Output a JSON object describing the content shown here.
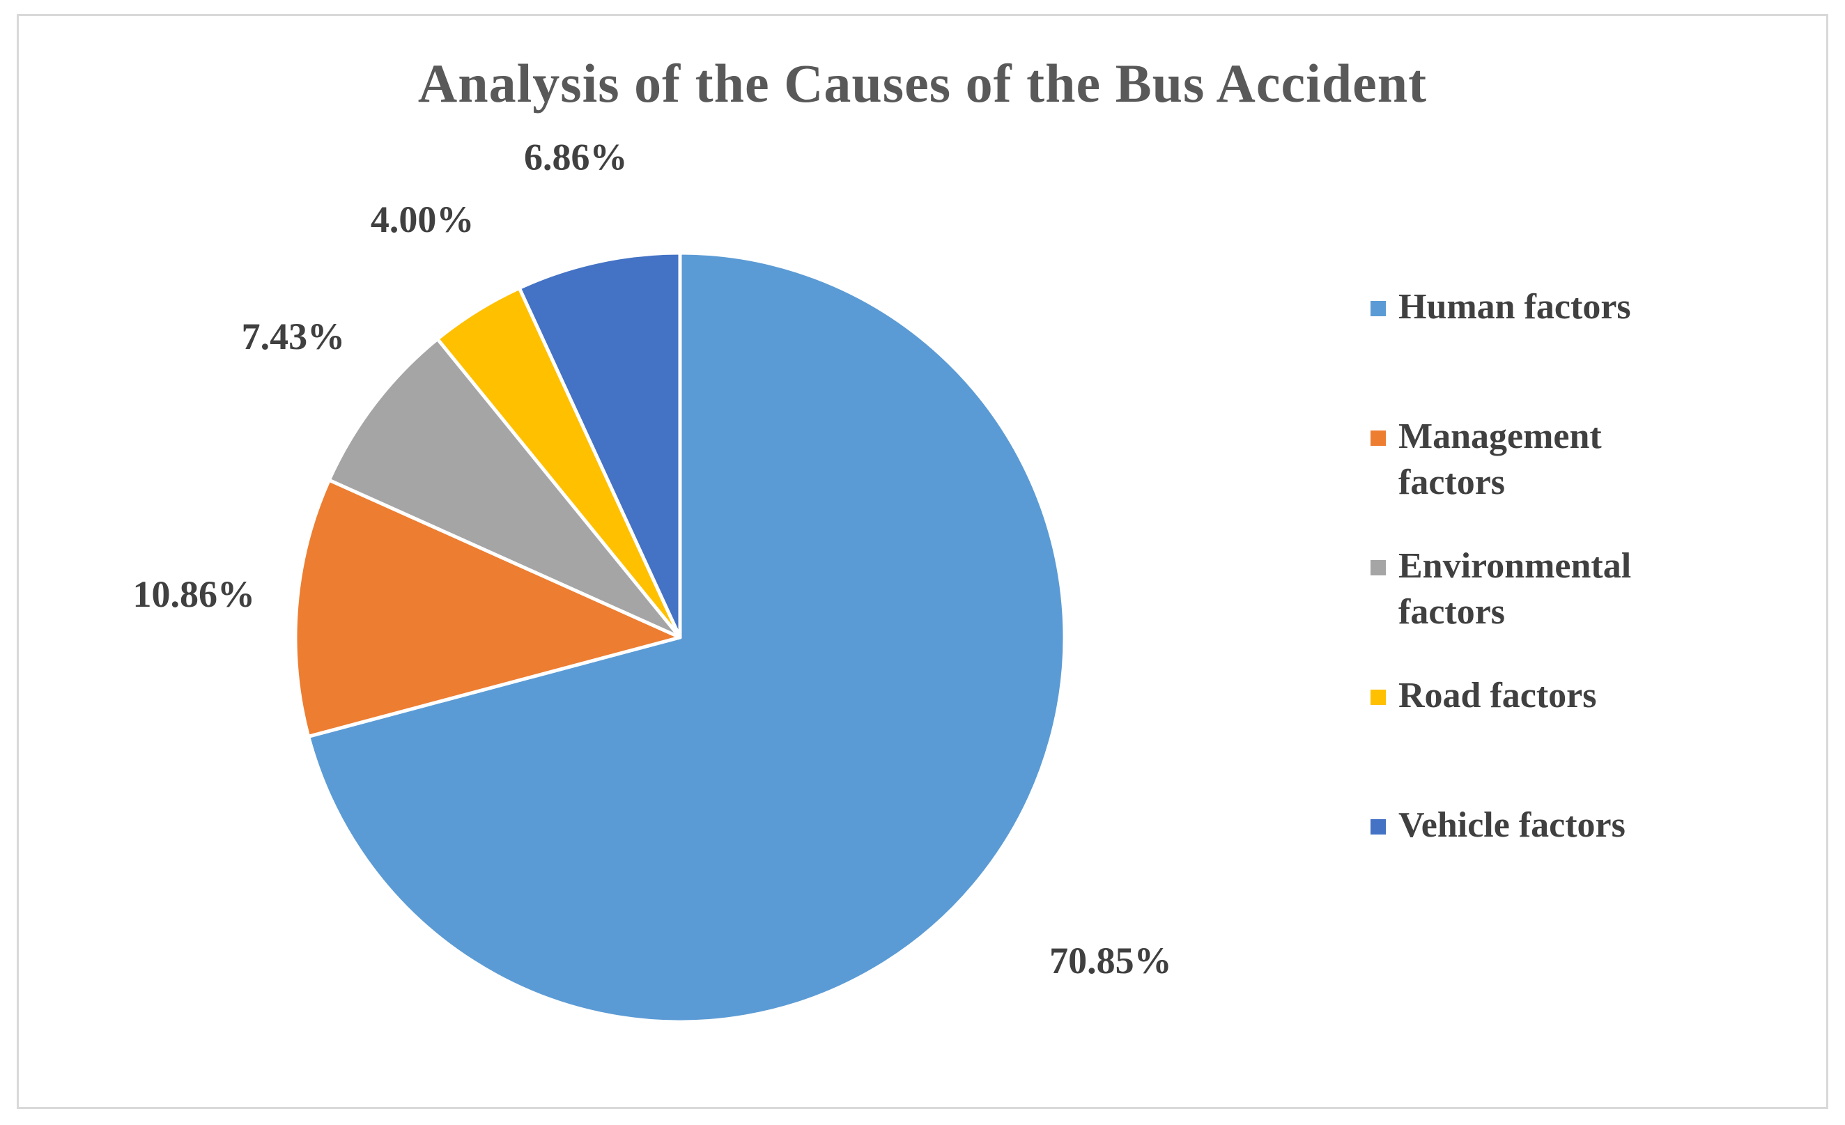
{
  "title": "Analysis of the Causes of the Bus Accident",
  "chart_data": {
    "type": "pie",
    "title": "Analysis of the Causes of the Bus Accident",
    "legend_position": "right",
    "slices": [
      {
        "label": "Human factors",
        "value": 70.85,
        "data_label": "70.85%",
        "color": "#5B9BD5"
      },
      {
        "label": "Management factors",
        "value": 10.86,
        "data_label": "10.86%",
        "color": "#ED7D31"
      },
      {
        "label": "Environmental factors",
        "value": 7.43,
        "data_label": "7.43%",
        "color": "#A5A5A5"
      },
      {
        "label": "Road factors",
        "value": 4.0,
        "data_label": "4.00%",
        "color": "#FFC000"
      },
      {
        "label": "Vehicle factors",
        "value": 6.86,
        "data_label": "6.86%",
        "color": "#4472C4"
      }
    ]
  }
}
